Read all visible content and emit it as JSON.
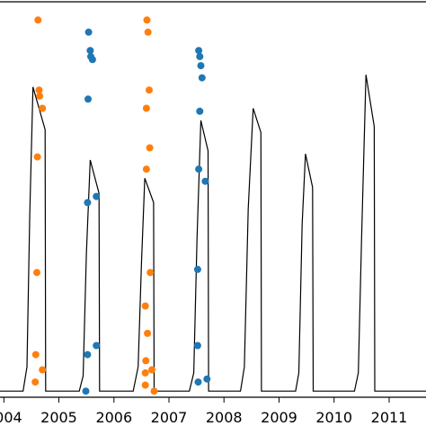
{
  "chart_data": {
    "type": "scatter",
    "title": "",
    "xlabel": "",
    "ylabel": "",
    "xlim": [
      2003.93,
      2011.67
    ],
    "ylim": [
      -0.02,
      1.28
    ],
    "grid": false,
    "x_ticks": [
      2004,
      2005,
      2006,
      2007,
      2008,
      2009,
      2010,
      2011
    ],
    "x_tick_labels": [
      "2004",
      "2005",
      "2006",
      "2007",
      "2008",
      "2009",
      "2010",
      "2011"
    ],
    "line_series": {
      "color": "#000000",
      "points": [
        [
          2003.93,
          0.0
        ],
        [
          2004.35,
          0.0
        ],
        [
          2004.42,
          0.08
        ],
        [
          2004.47,
          0.58
        ],
        [
          2004.53,
          1.0
        ],
        [
          2004.75,
          0.86
        ],
        [
          2004.76,
          0.0
        ],
        [
          2005.37,
          0.0
        ],
        [
          2005.44,
          0.05
        ],
        [
          2005.5,
          0.45
        ],
        [
          2005.57,
          0.76
        ],
        [
          2005.73,
          0.65
        ],
        [
          2005.74,
          0.0
        ],
        [
          2006.35,
          0.0
        ],
        [
          2006.44,
          0.08
        ],
        [
          2006.5,
          0.42
        ],
        [
          2006.56,
          0.7
        ],
        [
          2006.72,
          0.62
        ],
        [
          2006.73,
          0.0
        ],
        [
          2007.37,
          0.0
        ],
        [
          2007.45,
          0.06
        ],
        [
          2007.51,
          0.5
        ],
        [
          2007.58,
          0.89
        ],
        [
          2007.71,
          0.79
        ],
        [
          2007.72,
          0.0
        ],
        [
          2008.3,
          0.0
        ],
        [
          2008.37,
          0.08
        ],
        [
          2008.44,
          0.6
        ],
        [
          2008.53,
          0.93
        ],
        [
          2008.67,
          0.85
        ],
        [
          2008.68,
          0.0
        ],
        [
          2009.3,
          0.0
        ],
        [
          2009.36,
          0.06
        ],
        [
          2009.42,
          0.55
        ],
        [
          2009.48,
          0.78
        ],
        [
          2009.61,
          0.67
        ],
        [
          2009.62,
          0.0
        ],
        [
          2010.37,
          0.0
        ],
        [
          2010.44,
          0.06
        ],
        [
          2010.5,
          0.5
        ],
        [
          2010.58,
          1.04
        ],
        [
          2010.73,
          0.87
        ],
        [
          2010.74,
          0.0
        ],
        [
          2011.67,
          0.0
        ]
      ]
    },
    "series": [
      {
        "color": "#ff7f0e",
        "points": [
          [
            2004.62,
            1.22
          ],
          [
            2004.64,
            0.99
          ],
          [
            2004.65,
            0.97
          ],
          [
            2004.7,
            0.93
          ],
          [
            2004.61,
            0.77
          ],
          [
            2004.6,
            0.39
          ],
          [
            2004.58,
            0.12
          ],
          [
            2004.7,
            0.07
          ],
          [
            2004.57,
            0.03
          ],
          [
            2006.6,
            1.22
          ],
          [
            2006.62,
            1.18
          ],
          [
            2006.64,
            0.99
          ],
          [
            2006.59,
            0.93
          ],
          [
            2006.65,
            0.8
          ],
          [
            2006.59,
            0.73
          ],
          [
            2006.66,
            0.39
          ],
          [
            2006.57,
            0.28
          ],
          [
            2006.61,
            0.19
          ],
          [
            2006.58,
            0.1
          ],
          [
            2006.57,
            0.06
          ],
          [
            2006.69,
            0.07
          ],
          [
            2006.57,
            0.02
          ],
          [
            2006.73,
            0.0
          ]
        ]
      },
      {
        "color": "#1f77b4",
        "points": [
          [
            2005.54,
            1.18
          ],
          [
            2005.57,
            1.12
          ],
          [
            2005.58,
            1.1
          ],
          [
            2005.61,
            1.09
          ],
          [
            2005.53,
            0.96
          ],
          [
            2005.52,
            0.62
          ],
          [
            2005.68,
            0.64
          ],
          [
            2005.52,
            0.12
          ],
          [
            2005.68,
            0.15
          ],
          [
            2005.49,
            0.0
          ],
          [
            2007.54,
            1.12
          ],
          [
            2007.56,
            1.1
          ],
          [
            2007.58,
            1.07
          ],
          [
            2007.6,
            1.03
          ],
          [
            2007.56,
            0.92
          ],
          [
            2007.54,
            0.73
          ],
          [
            2007.66,
            0.69
          ],
          [
            2007.52,
            0.4
          ],
          [
            2007.52,
            0.15
          ],
          [
            2007.53,
            0.03
          ],
          [
            2007.69,
            0.04
          ]
        ]
      }
    ]
  }
}
